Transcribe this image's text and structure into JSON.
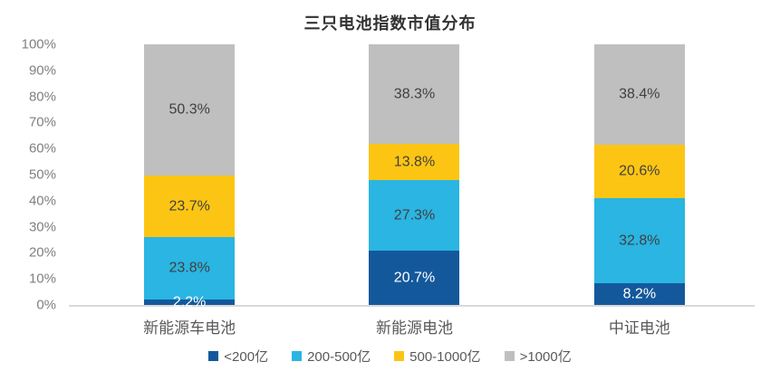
{
  "chart_data": {
    "type": "bar",
    "stacked": true,
    "percent_stacked": true,
    "title": "三只电池指数市值分布",
    "categories": [
      "新能源车电池",
      "新能源电池",
      "中证电池"
    ],
    "series": [
      {
        "name": "<200亿",
        "color": "#14589C",
        "label_color": "#ffffff",
        "values": [
          2.2,
          20.7,
          8.2
        ]
      },
      {
        "name": "200-500亿",
        "color": "#2AB5E2",
        "label_color": "#404040",
        "values": [
          23.8,
          27.3,
          32.8
        ]
      },
      {
        "name": "500-1000亿",
        "color": "#FDC513",
        "label_color": "#404040",
        "values": [
          23.7,
          13.8,
          20.6
        ]
      },
      {
        "name": ">1000亿",
        "color": "#BFBFBF",
        "label_color": "#404040",
        "values": [
          50.3,
          38.3,
          38.4
        ]
      }
    ],
    "data_label_suffix": "%",
    "y_ticks": [
      "0%",
      "10%",
      "20%",
      "30%",
      "40%",
      "50%",
      "60%",
      "70%",
      "80%",
      "90%",
      "100%"
    ],
    "ylim": [
      0,
      100
    ],
    "grid": false,
    "legend_position": "bottom",
    "axis_line_color": "#d9d9d9"
  }
}
